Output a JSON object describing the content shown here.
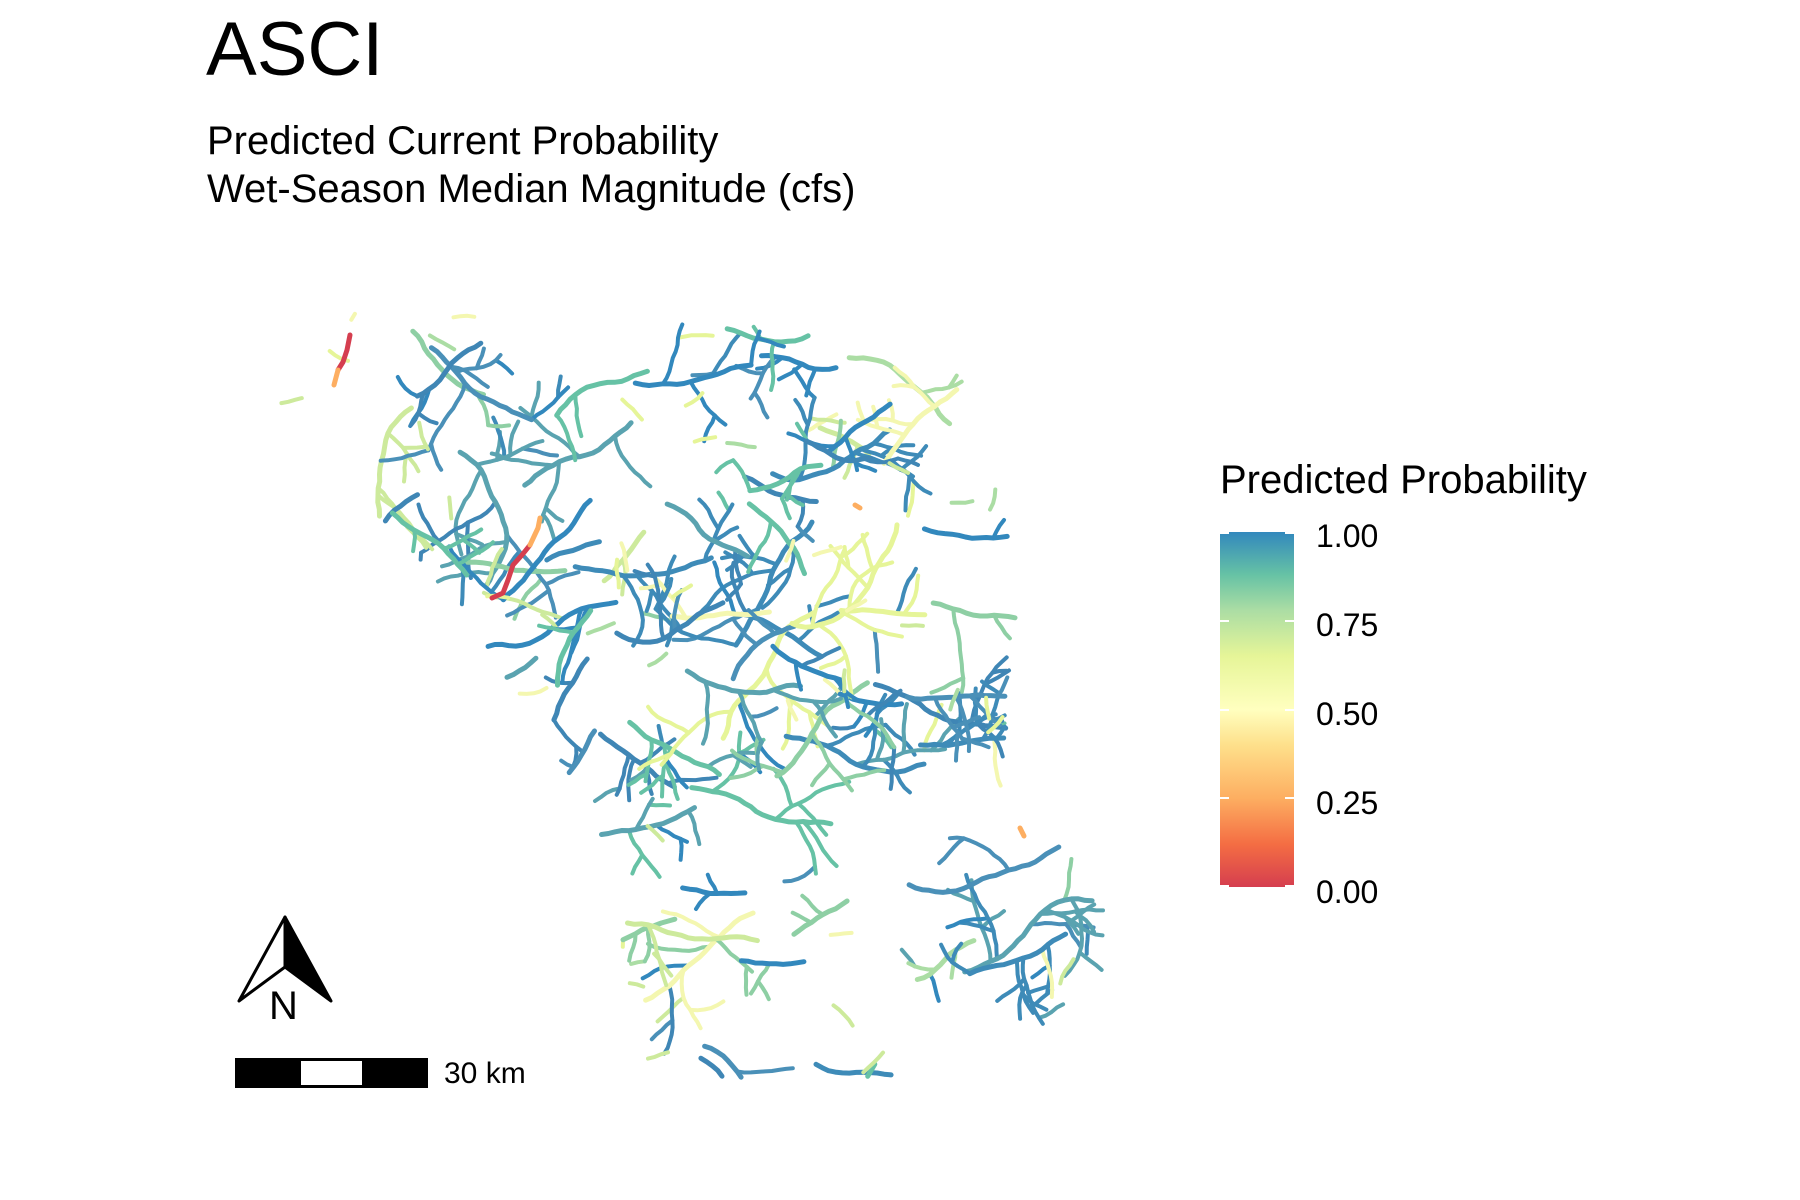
{
  "title": "ASCI",
  "subtitle": {
    "line1": "Predicted Current Probability",
    "line2": "Wet-Season Median Magnitude (cfs)"
  },
  "legend": {
    "title": "Predicted Probability",
    "labels": [
      "1.00",
      "0.75",
      "0.50",
      "0.25",
      "0.00"
    ],
    "colors": [
      "#3288bd",
      "#66c2a5",
      "#abdda4",
      "#e6f598",
      "#ffffbf",
      "#fee08b",
      "#fdae61",
      "#f46d43",
      "#d53e4f"
    ]
  },
  "scalebar": {
    "label": "30 km"
  },
  "north_arrow": {
    "label": "N"
  }
}
